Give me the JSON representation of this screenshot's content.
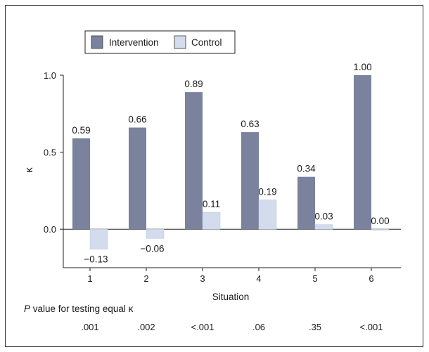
{
  "chart_data": {
    "type": "bar",
    "categories": [
      "1",
      "2",
      "3",
      "4",
      "5",
      "6"
    ],
    "series": [
      {
        "name": "Intervention",
        "color": "#7a829e",
        "values": [
          0.59,
          0.66,
          0.89,
          0.63,
          0.34,
          1.0
        ],
        "labels": [
          "0.59",
          "0.66",
          "0.89",
          "0.63",
          "0.34",
          "1.00"
        ]
      },
      {
        "name": "Control",
        "color": "#d2dcec",
        "values": [
          -0.13,
          -0.06,
          0.11,
          0.19,
          0.03,
          0.0
        ],
        "labels": [
          "−0.13",
          "−0.06",
          "0.11",
          "0.19",
          "0.03",
          "0.00"
        ]
      }
    ],
    "xlabel": "Situation",
    "ylabel": "κ",
    "ylim": [
      -0.25,
      1.0
    ],
    "yticks": [
      0.0,
      0.5,
      1.0
    ],
    "ytick_labels": [
      "0.0",
      "0.5",
      "1.0"
    ],
    "grid": false,
    "legend_position": "top-left",
    "p_values": {
      "title_italic": "P",
      "title_rest": " value for testing equal κ",
      "values": [
        ".001",
        ".002",
        "<.001",
        ".06",
        ".35",
        "<.001"
      ]
    }
  }
}
